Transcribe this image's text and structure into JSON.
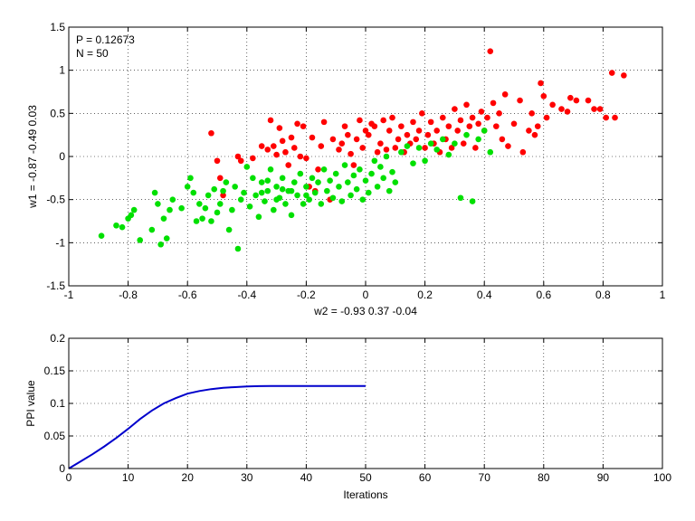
{
  "chart_data": [
    {
      "type": "scatter",
      "xlabel": "w2 = -0.93  0.37  -0.04",
      "ylabel": "w1 = -0.87  -0.49  0.03",
      "annotations": [
        "P = 0.12673",
        "N = 50"
      ],
      "xlim": [
        -1,
        1
      ],
      "ylim": [
        -1.5,
        1.5
      ],
      "xticks": [
        "-1",
        "-0.8",
        "-0.6",
        "-0.4",
        "-0.2",
        "0",
        "0.2",
        "0.4",
        "0.6",
        "0.8",
        "1"
      ],
      "yticks": [
        "-1.5",
        "-1",
        "-0.5",
        "0",
        "0.5",
        "1",
        "1.5"
      ],
      "grid": true,
      "series": [
        {
          "color": "#ff0000",
          "points": [
            [
              -0.52,
              0.27
            ],
            [
              -0.5,
              -0.05
            ],
            [
              -0.49,
              -0.25
            ],
            [
              -0.48,
              -0.45
            ],
            [
              -0.43,
              0.0
            ],
            [
              -0.42,
              -0.05
            ],
            [
              -0.38,
              -0.02
            ],
            [
              -0.35,
              0.12
            ],
            [
              -0.33,
              0.08
            ],
            [
              -0.32,
              0.42
            ],
            [
              -0.31,
              0.12
            ],
            [
              -0.3,
              0.02
            ],
            [
              -0.29,
              0.33
            ],
            [
              -0.28,
              0.18
            ],
            [
              -0.27,
              0.05
            ],
            [
              -0.26,
              -0.1
            ],
            [
              -0.25,
              0.22
            ],
            [
              -0.24,
              0.1
            ],
            [
              -0.23,
              0.38
            ],
            [
              -0.22,
              0.0
            ],
            [
              -0.21,
              0.35
            ],
            [
              -0.2,
              -0.02
            ],
            [
              -0.19,
              -0.35
            ],
            [
              -0.18,
              0.22
            ],
            [
              -0.17,
              -0.4
            ],
            [
              -0.16,
              -0.15
            ],
            [
              -0.15,
              0.12
            ],
            [
              -0.14,
              0.4
            ],
            [
              -0.12,
              -0.5
            ],
            [
              -0.11,
              0.2
            ],
            [
              -0.09,
              0.08
            ],
            [
              -0.08,
              0.15
            ],
            [
              -0.07,
              0.35
            ],
            [
              -0.06,
              0.25
            ],
            [
              -0.05,
              0.03
            ],
            [
              -0.04,
              -0.1
            ],
            [
              -0.03,
              0.2
            ],
            [
              -0.02,
              0.42
            ],
            [
              -0.01,
              0.1
            ],
            [
              0.0,
              0.3
            ],
            [
              0.01,
              0.25
            ],
            [
              0.02,
              0.38
            ],
            [
              0.03,
              0.35
            ],
            [
              0.04,
              0.05
            ],
            [
              0.05,
              0.15
            ],
            [
              0.06,
              0.42
            ],
            [
              0.07,
              0.08
            ],
            [
              0.08,
              0.3
            ],
            [
              0.09,
              0.45
            ],
            [
              0.1,
              0.1
            ],
            [
              0.11,
              0.2
            ],
            [
              0.12,
              0.35
            ],
            [
              0.13,
              0.05
            ],
            [
              0.14,
              0.25
            ],
            [
              0.15,
              0.15
            ],
            [
              0.16,
              0.4
            ],
            [
              0.17,
              0.2
            ],
            [
              0.18,
              0.3
            ],
            [
              0.19,
              0.5
            ],
            [
              0.2,
              0.1
            ],
            [
              0.21,
              0.25
            ],
            [
              0.22,
              0.4
            ],
            [
              0.23,
              0.15
            ],
            [
              0.24,
              0.3
            ],
            [
              0.25,
              0.05
            ],
            [
              0.26,
              0.45
            ],
            [
              0.27,
              0.2
            ],
            [
              0.28,
              0.35
            ],
            [
              0.29,
              0.1
            ],
            [
              0.3,
              0.55
            ],
            [
              0.31,
              0.3
            ],
            [
              0.32,
              0.42
            ],
            [
              0.33,
              0.15
            ],
            [
              0.34,
              0.6
            ],
            [
              0.35,
              0.35
            ],
            [
              0.36,
              0.45
            ],
            [
              0.37,
              0.1
            ],
            [
              0.38,
              0.38
            ],
            [
              0.39,
              0.52
            ],
            [
              0.4,
              0.3
            ],
            [
              0.41,
              0.45
            ],
            [
              0.42,
              1.22
            ],
            [
              0.43,
              0.62
            ],
            [
              0.44,
              0.35
            ],
            [
              0.45,
              0.5
            ],
            [
              0.46,
              0.2
            ],
            [
              0.47,
              0.72
            ],
            [
              0.48,
              0.12
            ],
            [
              0.5,
              0.38
            ],
            [
              0.52,
              0.65
            ],
            [
              0.53,
              0.05
            ],
            [
              0.55,
              0.3
            ],
            [
              0.56,
              0.5
            ],
            [
              0.57,
              0.25
            ],
            [
              0.58,
              0.35
            ],
            [
              0.59,
              0.85
            ],
            [
              0.6,
              0.7
            ],
            [
              0.61,
              0.45
            ],
            [
              0.63,
              0.6
            ],
            [
              0.66,
              0.55
            ],
            [
              0.68,
              0.52
            ],
            [
              0.69,
              0.68
            ],
            [
              0.71,
              0.65
            ],
            [
              0.75,
              0.65
            ],
            [
              0.77,
              0.55
            ],
            [
              0.79,
              0.55
            ],
            [
              0.83,
              0.97
            ],
            [
              0.84,
              0.45
            ],
            [
              0.87,
              0.94
            ],
            [
              0.81,
              0.45
            ]
          ]
        },
        {
          "color": "#00e000",
          "points": [
            [
              -0.89,
              -0.92
            ],
            [
              -0.84,
              -0.8
            ],
            [
              -0.82,
              -0.82
            ],
            [
              -0.8,
              -0.72
            ],
            [
              -0.79,
              -0.68
            ],
            [
              -0.78,
              -0.62
            ],
            [
              -0.76,
              -0.97
            ],
            [
              -0.72,
              -0.85
            ],
            [
              -0.71,
              -0.42
            ],
            [
              -0.7,
              -0.55
            ],
            [
              -0.69,
              -1.02
            ],
            [
              -0.68,
              -0.72
            ],
            [
              -0.67,
              -0.95
            ],
            [
              -0.66,
              -0.62
            ],
            [
              -0.65,
              -0.5
            ],
            [
              -0.62,
              -0.6
            ],
            [
              -0.6,
              -0.35
            ],
            [
              -0.59,
              -0.25
            ],
            [
              -0.58,
              -0.42
            ],
            [
              -0.57,
              -0.75
            ],
            [
              -0.56,
              -0.55
            ],
            [
              -0.55,
              -0.72
            ],
            [
              -0.54,
              -0.6
            ],
            [
              -0.53,
              -0.45
            ],
            [
              -0.52,
              -0.75
            ],
            [
              -0.51,
              -0.38
            ],
            [
              -0.5,
              -0.65
            ],
            [
              -0.49,
              -0.55
            ],
            [
              -0.48,
              -0.4
            ],
            [
              -0.47,
              -0.3
            ],
            [
              -0.46,
              -0.85
            ],
            [
              -0.45,
              -0.62
            ],
            [
              -0.44,
              -0.35
            ],
            [
              -0.43,
              -1.07
            ],
            [
              -0.42,
              -0.5
            ],
            [
              -0.41,
              -0.42
            ],
            [
              -0.4,
              -0.12
            ],
            [
              -0.39,
              -0.58
            ],
            [
              -0.38,
              -0.25
            ],
            [
              -0.37,
              -0.45
            ],
            [
              -0.36,
              -0.7
            ],
            [
              -0.35,
              -0.3
            ],
            [
              -0.34,
              -0.52
            ],
            [
              -0.33,
              -0.4
            ],
            [
              -0.32,
              -0.15
            ],
            [
              -0.31,
              -0.62
            ],
            [
              -0.3,
              -0.35
            ],
            [
              -0.29,
              -0.48
            ],
            [
              -0.28,
              -0.25
            ],
            [
              -0.27,
              -0.55
            ],
            [
              -0.26,
              -0.4
            ],
            [
              -0.25,
              -0.68
            ],
            [
              -0.24,
              -0.3
            ],
            [
              -0.23,
              -0.45
            ],
            [
              -0.22,
              -0.2
            ],
            [
              -0.21,
              -0.55
            ],
            [
              -0.2,
              -0.35
            ],
            [
              -0.19,
              -0.5
            ],
            [
              -0.18,
              -0.25
            ],
            [
              -0.17,
              -0.42
            ],
            [
              -0.16,
              -0.3
            ],
            [
              -0.15,
              -0.55
            ],
            [
              -0.14,
              -0.15
            ],
            [
              -0.13,
              -0.4
            ],
            [
              -0.12,
              -0.28
            ],
            [
              -0.11,
              -0.48
            ],
            [
              -0.1,
              -0.2
            ],
            [
              -0.09,
              -0.35
            ],
            [
              -0.08,
              -0.52
            ],
            [
              -0.07,
              -0.1
            ],
            [
              -0.06,
              -0.3
            ],
            [
              -0.05,
              -0.45
            ],
            [
              -0.04,
              -0.22
            ],
            [
              -0.03,
              -0.38
            ],
            [
              -0.02,
              -0.15
            ],
            [
              -0.01,
              -0.5
            ],
            [
              0.0,
              -0.28
            ],
            [
              0.01,
              -0.42
            ],
            [
              0.02,
              -0.2
            ],
            [
              0.03,
              -0.05
            ],
            [
              0.04,
              -0.35
            ],
            [
              0.05,
              -0.12
            ],
            [
              0.06,
              -0.25
            ],
            [
              0.07,
              0.0
            ],
            [
              0.08,
              -0.4
            ],
            [
              0.09,
              -0.18
            ],
            [
              0.1,
              -0.3
            ],
            [
              0.12,
              0.05
            ],
            [
              0.14,
              0.12
            ],
            [
              0.16,
              -0.08
            ],
            [
              0.18,
              0.1
            ],
            [
              0.2,
              -0.05
            ],
            [
              0.22,
              0.15
            ],
            [
              0.24,
              0.08
            ],
            [
              0.26,
              0.2
            ],
            [
              0.28,
              0.02
            ],
            [
              0.3,
              0.15
            ],
            [
              0.32,
              -0.48
            ],
            [
              0.34,
              0.25
            ],
            [
              0.36,
              -0.52
            ],
            [
              0.38,
              0.2
            ],
            [
              0.4,
              0.3
            ],
            [
              0.42,
              0.05
            ],
            [
              -0.35,
              -0.42
            ],
            [
              -0.3,
              -0.5
            ],
            [
              -0.25,
              -0.4
            ],
            [
              -0.2,
              -0.45
            ],
            [
              -0.28,
              -0.38
            ],
            [
              -0.33,
              -0.28
            ]
          ]
        }
      ]
    },
    {
      "type": "line",
      "xlabel": "Iterations",
      "ylabel": "PPI value",
      "xlim": [
        0,
        100
      ],
      "ylim": [
        0,
        0.2
      ],
      "xticks": [
        "0",
        "10",
        "20",
        "30",
        "40",
        "50",
        "60",
        "70",
        "80",
        "90",
        "100"
      ],
      "yticks": [
        "0",
        "0.05",
        "0.1",
        "0.15",
        "0.2"
      ],
      "grid": true,
      "series": [
        {
          "color": "#0000cc",
          "x": [
            0,
            2,
            4,
            6,
            8,
            10,
            12,
            14,
            16,
            18,
            20,
            22,
            24,
            26,
            28,
            30,
            32,
            34,
            36,
            38,
            40,
            42,
            44,
            46,
            48,
            50
          ],
          "y": [
            0.0,
            0.011,
            0.022,
            0.034,
            0.047,
            0.061,
            0.076,
            0.089,
            0.1,
            0.108,
            0.115,
            0.119,
            0.122,
            0.124,
            0.125,
            0.126,
            0.1265,
            0.1266,
            0.1267,
            0.1267,
            0.1267,
            0.1267,
            0.1267,
            0.1267,
            0.1267,
            0.1267
          ]
        }
      ]
    }
  ]
}
